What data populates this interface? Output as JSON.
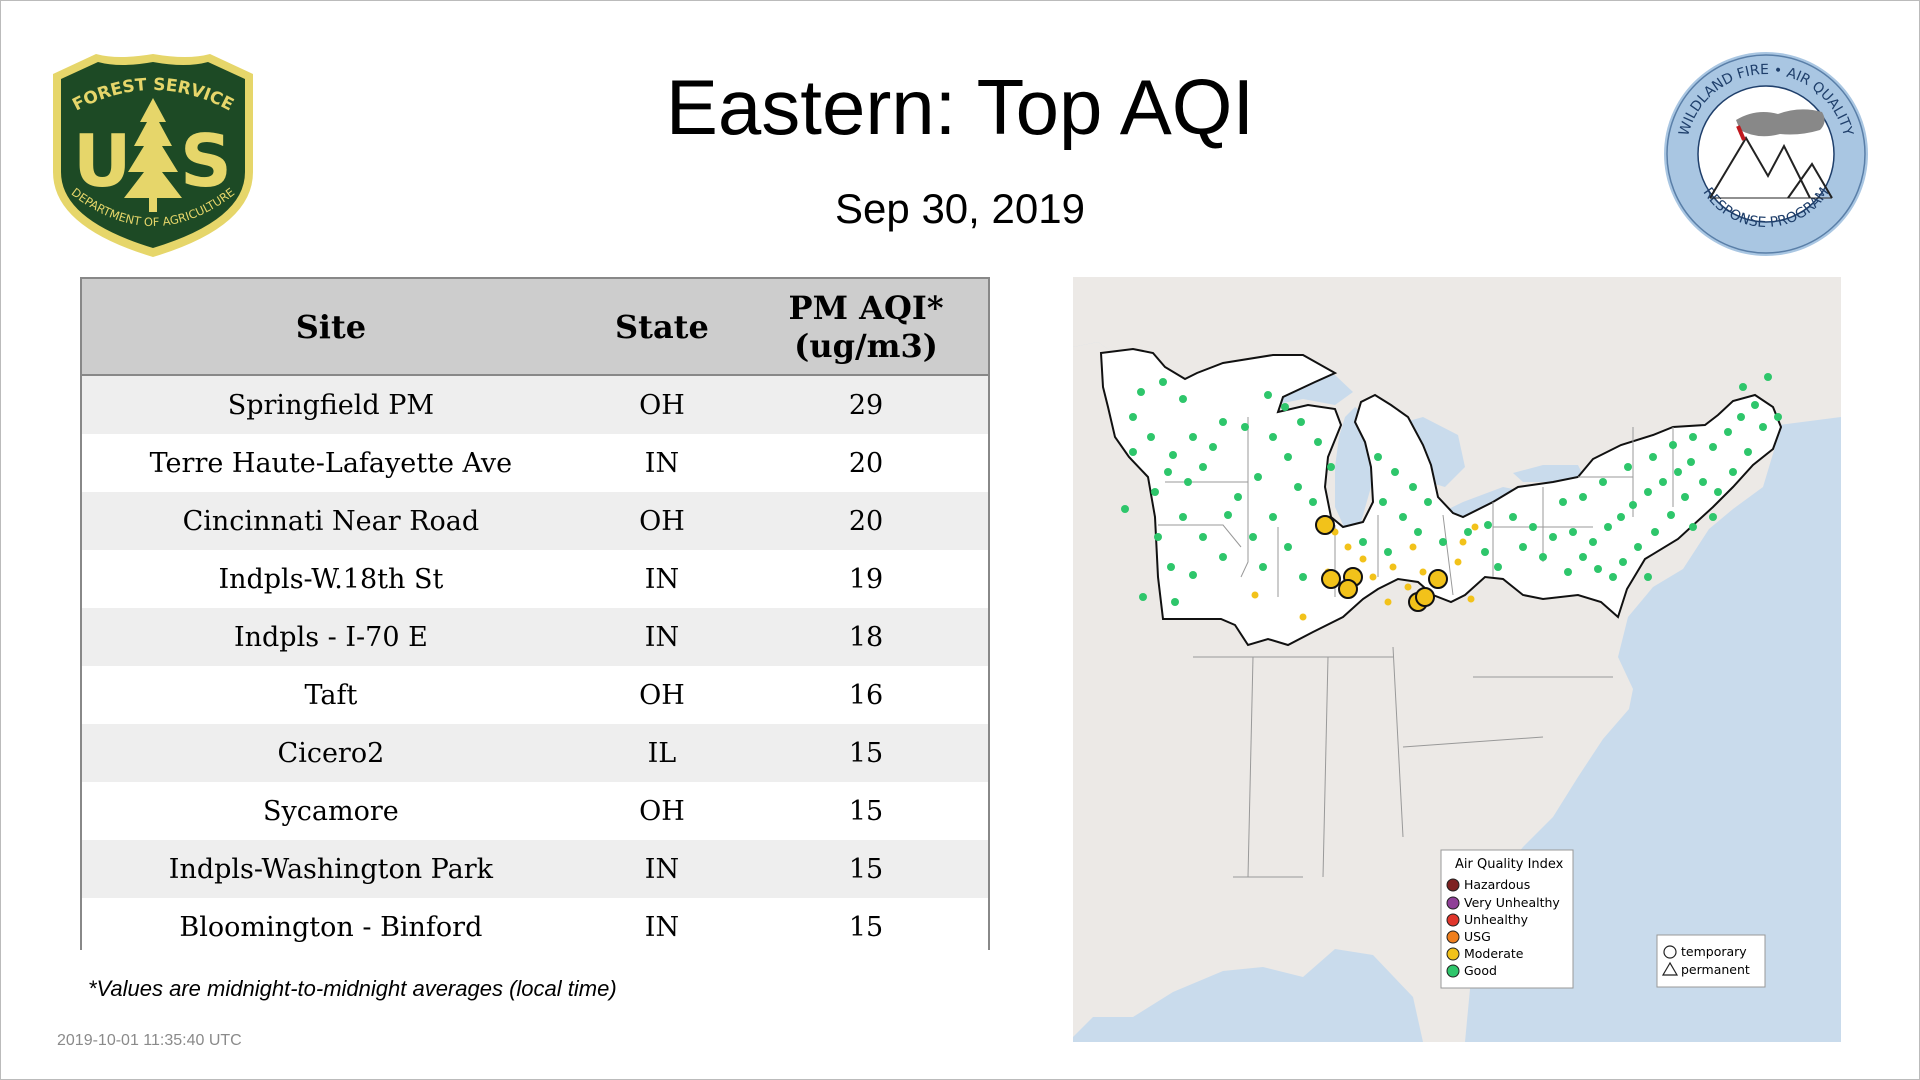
{
  "header": {
    "title": "Eastern: Top AQI",
    "date": "Sep 30, 2019"
  },
  "logos": {
    "left": {
      "top_text": "FOREST SERVICE",
      "letters": "US",
      "bottom_text": "DEPARTMENT OF AGRICULTURE",
      "colors": {
        "green": "#1d4a25",
        "gold": "#e6d66a"
      }
    },
    "right": {
      "top_text": "WILDLAND FIRE • AIR QUALITY",
      "bottom_text": "RESPONSE PROGRAM",
      "colors": {
        "ring": "#a9c6e2",
        "text": "#1f3f6b"
      }
    }
  },
  "table": {
    "headers": {
      "site": "Site",
      "state": "State",
      "pm_line1": "PM AQI*",
      "pm_line2": "(ug/m3)"
    },
    "rows": [
      {
        "site": "Springfield PM",
        "state": "OH",
        "value": "29"
      },
      {
        "site": "Terre Haute-Lafayette Ave",
        "state": "IN",
        "value": "20"
      },
      {
        "site": "Cincinnati Near Road",
        "state": "OH",
        "value": "20"
      },
      {
        "site": "Indpls-W.18th St",
        "state": "IN",
        "value": "19"
      },
      {
        "site": "Indpls - I-70 E",
        "state": "IN",
        "value": "18"
      },
      {
        "site": "Taft",
        "state": "OH",
        "value": "16"
      },
      {
        "site": "Cicero2",
        "state": "IL",
        "value": "15"
      },
      {
        "site": "Sycamore",
        "state": "OH",
        "value": "15"
      },
      {
        "site": "Indpls-Washington Park",
        "state": "IN",
        "value": "15"
      },
      {
        "site": "Bloomington - Binford",
        "state": "IN",
        "value": "15"
      }
    ]
  },
  "footnote": "*Values are midnight-to-midnight averages (local time)",
  "timestamp": "2019-10-01 11:35:40 UTC",
  "map": {
    "legend": {
      "title": "Air Quality Index",
      "categories": [
        {
          "label": "Hazardous",
          "color": "#7e2222"
        },
        {
          "label": "Very Unhealthy",
          "color": "#8f3f97"
        },
        {
          "label": "Unhealthy",
          "color": "#e0352b"
        },
        {
          "label": "USG",
          "color": "#f07f1e"
        },
        {
          "label": "Moderate",
          "color": "#f2c21a"
        },
        {
          "label": "Good",
          "color": "#2ec66b"
        }
      ],
      "markers": {
        "circle": "temporary",
        "triangle": "permanent"
      }
    },
    "colors": {
      "water": "#c9dbec",
      "land": "#ece9e6",
      "highlight_land": "#ffffff",
      "border": "#111111"
    }
  }
}
